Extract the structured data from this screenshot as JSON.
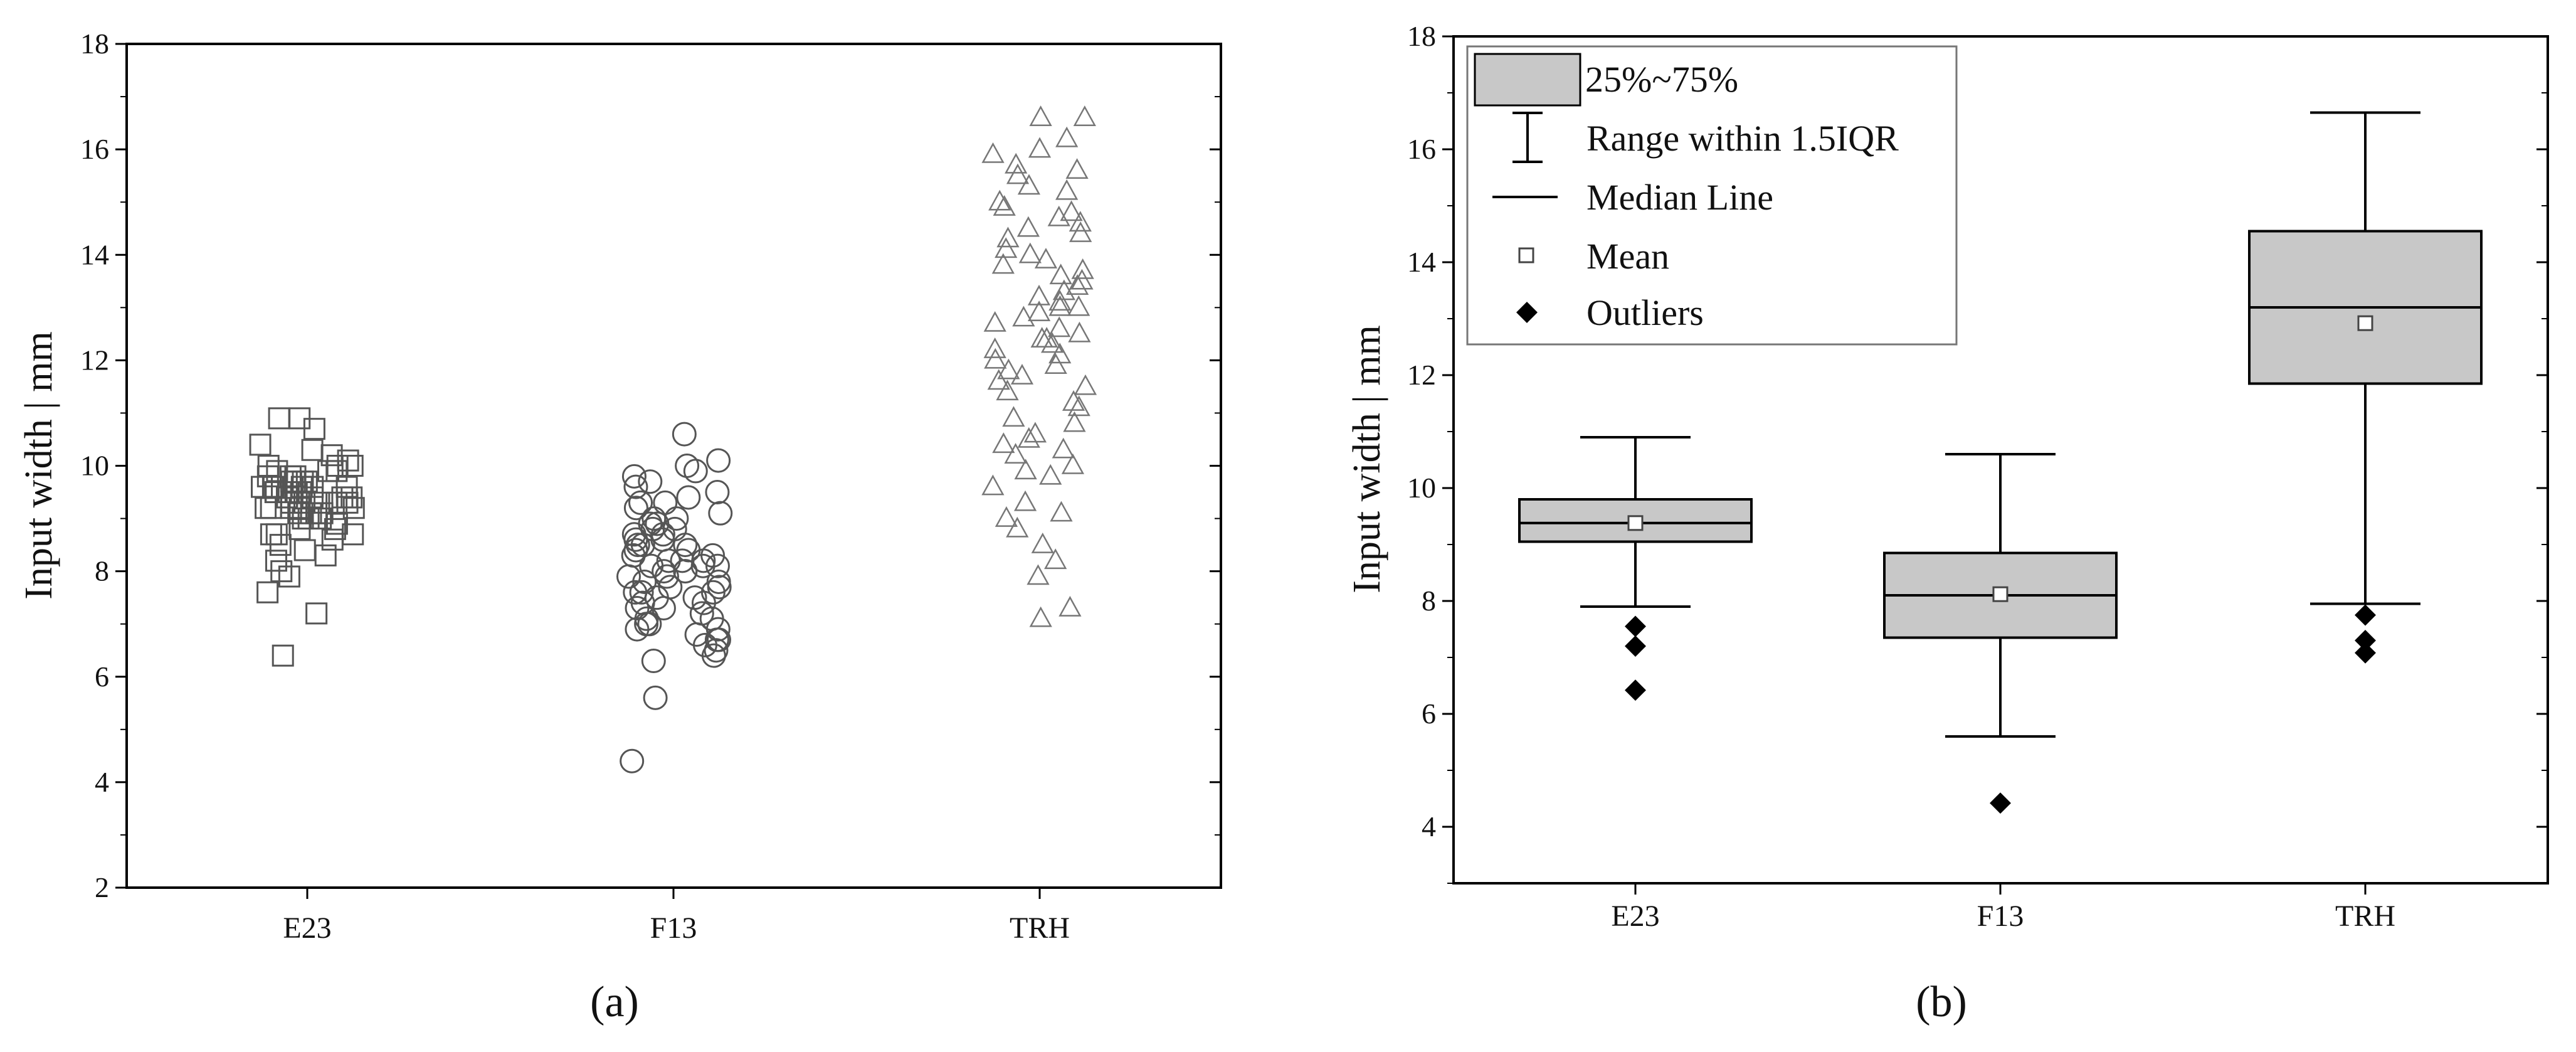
{
  "chart_data": [
    {
      "panel_label": "(a)",
      "type": "scatter",
      "ylabel": "Input width | mm",
      "xlabel": "",
      "categories": [
        "E23",
        "F13",
        "TRH"
      ],
      "ylim": [
        2,
        18
      ],
      "yticks": [
        2,
        4,
        6,
        8,
        10,
        12,
        14,
        16,
        18
      ],
      "grid": false,
      "colors": {
        "marker": "#555555",
        "axis": "#000000"
      },
      "series": [
        {
          "category": "E23",
          "marker": "square",
          "values": [
            9.4,
            9.2,
            9.6,
            9.8,
            9.0,
            9.3,
            9.5,
            9.7,
            9.1,
            9.4,
            10.0,
            9.9,
            9.2,
            8.9,
            9.6,
            9.3,
            9.5,
            9.0,
            9.8,
            10.2,
            9.4,
            9.1,
            8.8,
            9.6,
            9.3,
            9.7,
            10.4,
            9.5,
            9.2,
            8.7,
            9.9,
            9.4,
            10.9,
            10.9,
            10.7,
            10.0,
            9.6,
            9.3,
            8.6,
            9.1,
            10.1,
            9.7,
            8.5,
            8.3,
            8.8,
            9.4,
            9.0,
            9.6,
            9.2,
            9.5,
            8.7,
            9.9,
            10.3,
            9.1,
            9.4,
            8.4,
            8.0,
            7.9,
            8.7,
            8.2,
            9.8,
            9.3,
            9.6,
            10.0,
            7.6,
            7.2,
            6.4,
            9.5,
            9.2,
            9.7
          ]
        },
        {
          "category": "F13",
          "marker": "circle",
          "values": [
            8.2,
            7.9,
            8.5,
            7.6,
            8.8,
            7.3,
            8.0,
            8.4,
            7.7,
            9.0,
            6.9,
            8.6,
            7.5,
            8.1,
            9.3,
            7.1,
            8.3,
            7.8,
            9.6,
            6.7,
            8.9,
            7.4,
            8.0,
            9.9,
            6.5,
            8.7,
            7.2,
            8.2,
            9.1,
            6.8,
            7.9,
            8.5,
            10.1,
            10.6,
            10.0,
            9.7,
            9.4,
            6.3,
            6.6,
            7.0,
            8.4,
            7.6,
            8.1,
            8.8,
            7.3,
            9.2,
            6.9,
            7.7,
            8.6,
            8.0,
            9.5,
            7.5,
            8.3,
            6.4,
            9.0,
            7.8,
            8.9,
            7.1,
            8.5,
            9.3,
            6.7,
            7.4,
            8.2,
            9.8,
            7.0,
            8.7,
            7.6,
            8.1,
            5.6,
            4.4
          ]
        },
        {
          "category": "TRH",
          "marker": "triangle",
          "values": [
            16.6,
            16.6,
            16.2,
            15.9,
            15.5,
            15.2,
            14.9,
            14.7,
            14.4,
            14.1,
            13.9,
            13.6,
            13.4,
            13.2,
            13.0,
            12.8,
            12.6,
            12.4,
            12.3,
            12.1,
            11.9,
            11.7,
            11.4,
            11.1,
            10.8,
            10.5,
            10.2,
            9.9,
            9.6,
            9.3,
            9.1,
            8.8,
            8.5,
            8.2,
            7.9,
            7.3,
            7.1,
            15.7,
            14.6,
            13.8,
            12.9,
            12.5,
            11.6,
            10.9,
            10.4,
            9.8,
            14.3,
            13.5,
            15.0,
            12.2,
            11.2,
            10.6,
            14.0,
            13.1,
            12.0,
            15.3,
            16.0,
            13.7,
            12.7,
            11.8,
            10.0,
            9.0,
            14.8,
            13.3,
            12.4,
            15.6,
            11.5,
            10.3,
            14.5,
            13.0
          ]
        }
      ]
    },
    {
      "panel_label": "(b)",
      "type": "box",
      "ylabel": "Input width | mm",
      "xlabel": "",
      "categories": [
        "E23",
        "F13",
        "TRH"
      ],
      "ylim": [
        3,
        18
      ],
      "yticks": [
        4,
        6,
        8,
        10,
        12,
        14,
        16,
        18
      ],
      "grid": false,
      "legend_position": "top-left",
      "legend": [
        {
          "key": "box",
          "label": "25%~75%"
        },
        {
          "key": "whisker",
          "label": "Range within 1.5IQR"
        },
        {
          "key": "median",
          "label": "Median Line"
        },
        {
          "key": "mean",
          "label": "Mean"
        },
        {
          "key": "outlier",
          "label": "Outliers"
        }
      ],
      "colors": {
        "box_fill": "#c8c8c8",
        "stroke": "#000000",
        "mean_marker": "#555555",
        "outlier": "#000000"
      },
      "boxes": [
        {
          "category": "E23",
          "whisker_low": 7.9,
          "q1": 9.05,
          "median": 9.38,
          "q3": 9.8,
          "whisker_high": 10.9,
          "mean": 9.38,
          "outliers": [
            7.55,
            7.2,
            6.42
          ]
        },
        {
          "category": "F13",
          "whisker_low": 5.6,
          "q1": 7.35,
          "median": 8.1,
          "q3": 8.85,
          "whisker_high": 10.6,
          "mean": 8.12,
          "outliers": [
            4.42
          ]
        },
        {
          "category": "TRH",
          "whisker_low": 7.95,
          "q1": 11.85,
          "median": 13.2,
          "q3": 14.55,
          "whisker_high": 16.65,
          "mean": 12.92,
          "outliers": [
            7.75,
            7.3,
            7.08
          ]
        }
      ]
    }
  ]
}
